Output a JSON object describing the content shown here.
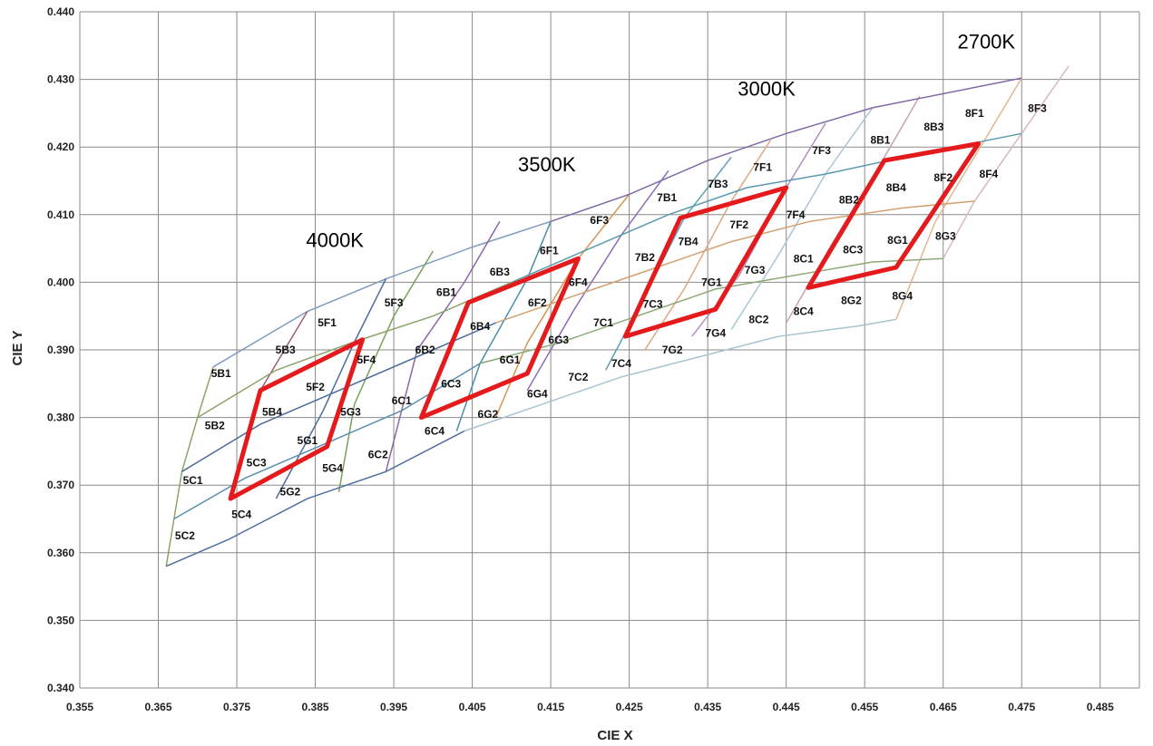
{
  "chart_data": {
    "type": "line",
    "title": "",
    "xlabel": "CIE X",
    "ylabel": "CIE Y",
    "xlim": [
      0.355,
      0.49
    ],
    "ylim": [
      0.34,
      0.44
    ],
    "x_ticks": [
      "0.355",
      "0.365",
      "0.375",
      "0.385",
      "0.395",
      "0.405",
      "0.415",
      "0.425",
      "0.435",
      "0.445",
      "0.455",
      "0.465",
      "0.475",
      "0.485"
    ],
    "y_ticks": [
      "0.340",
      "0.350",
      "0.360",
      "0.370",
      "0.380",
      "0.390",
      "0.400",
      "0.410",
      "0.420",
      "0.430",
      "0.440"
    ],
    "grid": true,
    "cct_groups": [
      {
        "label": "4000K",
        "x": 0.3875,
        "y": 0.4052
      },
      {
        "label": "3500K",
        "x": 0.4145,
        "y": 0.4164
      },
      {
        "label": "3000K",
        "x": 0.4425,
        "y": 0.4276
      },
      {
        "label": "2700K",
        "x": 0.4705,
        "y": 0.4346
      }
    ],
    "grid_lines": [
      {
        "color": "#7f9bbd",
        "points": [
          [
            0.372,
            0.3875
          ],
          [
            0.384,
            0.3957
          ],
          [
            0.394,
            0.4005
          ],
          [
            0.405,
            0.4052
          ],
          [
            0.415,
            0.409
          ]
        ]
      },
      {
        "color": "#8ca46a",
        "points": [
          [
            0.372,
            0.3875
          ],
          [
            0.37,
            0.38
          ],
          [
            0.368,
            0.372
          ],
          [
            0.367,
            0.365
          ],
          [
            0.366,
            0.358
          ]
        ]
      },
      {
        "color": "#9b5d7a",
        "points": [
          [
            0.384,
            0.3957
          ],
          [
            0.378,
            0.384
          ],
          [
            0.374,
            0.368
          ]
        ]
      },
      {
        "color": "#4c6c9c",
        "points": [
          [
            0.394,
            0.4005
          ],
          [
            0.39,
            0.3912
          ],
          [
            0.386,
            0.381
          ],
          [
            0.38,
            0.368
          ]
        ]
      },
      {
        "color": "#7aa05a",
        "points": [
          [
            0.4,
            0.4046
          ],
          [
            0.395,
            0.395
          ],
          [
            0.39,
            0.382
          ],
          [
            0.388,
            0.369
          ]
        ]
      },
      {
        "color": "#8c66a8",
        "points": [
          [
            0.4085,
            0.409
          ],
          [
            0.404,
            0.4
          ],
          [
            0.398,
            0.39
          ],
          [
            0.394,
            0.372
          ]
        ]
      },
      {
        "color": "#4a8fa8",
        "points": [
          [
            0.415,
            0.409
          ],
          [
            0.412,
            0.4005
          ],
          [
            0.406,
            0.388
          ],
          [
            0.403,
            0.378
          ]
        ]
      },
      {
        "color": "#d49654",
        "points": [
          [
            0.425,
            0.413
          ],
          [
            0.4185,
            0.4035
          ],
          [
            0.412,
            0.391
          ],
          [
            0.408,
            0.38
          ]
        ]
      },
      {
        "color": "#8d6eb4",
        "points": [
          [
            0.43,
            0.4165
          ],
          [
            0.424,
            0.407
          ],
          [
            0.418,
            0.396
          ],
          [
            0.412,
            0.384
          ]
        ]
      },
      {
        "color": "#5aa0b4",
        "points": [
          [
            0.438,
            0.4185
          ],
          [
            0.432,
            0.4095
          ],
          [
            0.427,
            0.398
          ],
          [
            0.422,
            0.387
          ]
        ]
      },
      {
        "color": "#e0a880",
        "points": [
          [
            0.443,
            0.421
          ],
          [
            0.438,
            0.412
          ],
          [
            0.432,
            0.399
          ],
          [
            0.427,
            0.39
          ]
        ]
      },
      {
        "color": "#b48cc0",
        "points": [
          [
            0.45,
            0.4235
          ],
          [
            0.445,
            0.414
          ],
          [
            0.439,
            0.401
          ],
          [
            0.433,
            0.392
          ]
        ]
      },
      {
        "color": "#a6c8d4",
        "points": [
          [
            0.456,
            0.4258
          ],
          [
            0.45,
            0.416
          ],
          [
            0.444,
            0.404
          ],
          [
            0.438,
            0.393
          ]
        ]
      },
      {
        "color": "#c8a0b8",
        "points": [
          [
            0.462,
            0.4275
          ],
          [
            0.457,
            0.4175
          ],
          [
            0.451,
            0.406
          ],
          [
            0.445,
            0.394
          ]
        ]
      },
      {
        "color": "#e0b890",
        "points": [
          [
            0.475,
            0.4302
          ],
          [
            0.47,
            0.4205
          ],
          [
            0.464,
            0.409
          ],
          [
            0.459,
            0.3945
          ]
        ]
      },
      {
        "color": "#d8b8c0",
        "points": [
          [
            0.481,
            0.432
          ],
          [
            0.475,
            0.422
          ],
          [
            0.469,
            0.412
          ],
          [
            0.465,
            0.4035
          ]
        ]
      },
      {
        "color": "#8ca46a",
        "points": [
          [
            0.37,
            0.38
          ],
          [
            0.38,
            0.387
          ],
          [
            0.39,
            0.3912
          ],
          [
            0.4,
            0.395
          ],
          [
            0.41,
            0.4
          ]
        ]
      },
      {
        "color": "#4c6c9c",
        "points": [
          [
            0.368,
            0.372
          ],
          [
            0.378,
            0.379
          ],
          [
            0.388,
            0.384
          ],
          [
            0.398,
            0.389
          ],
          [
            0.408,
            0.394
          ]
        ]
      },
      {
        "color": "#5a8fb0",
        "points": [
          [
            0.367,
            0.365
          ],
          [
            0.376,
            0.371
          ],
          [
            0.386,
            0.376
          ],
          [
            0.396,
            0.381
          ],
          [
            0.406,
            0.388
          ]
        ]
      },
      {
        "color": "#4f6fa0",
        "points": [
          [
            0.366,
            0.358
          ],
          [
            0.374,
            0.362
          ],
          [
            0.384,
            0.368
          ],
          [
            0.394,
            0.372
          ],
          [
            0.404,
            0.378
          ]
        ]
      },
      {
        "color": "#7f6aa6",
        "points": [
          [
            0.415,
            0.409
          ],
          [
            0.425,
            0.413
          ],
          [
            0.435,
            0.418
          ],
          [
            0.445,
            0.422
          ],
          [
            0.456,
            0.4258
          ],
          [
            0.475,
            0.4302
          ]
        ]
      },
      {
        "color": "#5a9ab0",
        "points": [
          [
            0.41,
            0.4
          ],
          [
            0.42,
            0.405
          ],
          [
            0.43,
            0.41
          ],
          [
            0.44,
            0.414
          ],
          [
            0.45,
            0.416
          ],
          [
            0.462,
            0.419
          ],
          [
            0.475,
            0.422
          ]
        ]
      },
      {
        "color": "#d4a070",
        "points": [
          [
            0.408,
            0.394
          ],
          [
            0.418,
            0.398
          ],
          [
            0.428,
            0.402
          ],
          [
            0.438,
            0.406
          ],
          [
            0.448,
            0.409
          ],
          [
            0.46,
            0.411
          ],
          [
            0.469,
            0.412
          ]
        ]
      },
      {
        "color": "#8caa78",
        "points": [
          [
            0.406,
            0.388
          ],
          [
            0.416,
            0.391
          ],
          [
            0.426,
            0.395
          ],
          [
            0.436,
            0.399
          ],
          [
            0.446,
            0.401
          ],
          [
            0.456,
            0.403
          ],
          [
            0.465,
            0.4035
          ]
        ]
      },
      {
        "color": "#a8c4d0",
        "points": [
          [
            0.404,
            0.378
          ],
          [
            0.414,
            0.382
          ],
          [
            0.424,
            0.386
          ],
          [
            0.434,
            0.389
          ],
          [
            0.444,
            0.392
          ],
          [
            0.454,
            0.3935
          ],
          [
            0.459,
            0.3945
          ]
        ]
      }
    ],
    "highlighted_quadrangles": [
      {
        "name": "4000K",
        "points": [
          [
            0.378,
            0.384
          ],
          [
            0.391,
            0.3915
          ],
          [
            0.3865,
            0.3757
          ],
          [
            0.3742,
            0.368
          ]
        ]
      },
      {
        "name": "3500K",
        "points": [
          [
            0.4045,
            0.397
          ],
          [
            0.4185,
            0.4035
          ],
          [
            0.412,
            0.3865
          ],
          [
            0.3985,
            0.38
          ]
        ]
      },
      {
        "name": "3000K",
        "points": [
          [
            0.4315,
            0.4095
          ],
          [
            0.445,
            0.414
          ],
          [
            0.436,
            0.396
          ],
          [
            0.4245,
            0.392
          ]
        ]
      },
      {
        "name": "2700K",
        "points": [
          [
            0.4575,
            0.418
          ],
          [
            0.4695,
            0.4205
          ],
          [
            0.459,
            0.4022
          ],
          [
            0.4478,
            0.3992
          ]
        ]
      }
    ],
    "bin_labels": [
      {
        "label": "5B1",
        "x": 0.373,
        "y": 0.3865
      },
      {
        "label": "5B2",
        "x": 0.3722,
        "y": 0.3788
      },
      {
        "label": "5C1",
        "x": 0.3694,
        "y": 0.3707
      },
      {
        "label": "5C2",
        "x": 0.3684,
        "y": 0.3625
      },
      {
        "label": "5B3",
        "x": 0.3812,
        "y": 0.39
      },
      {
        "label": "5B4",
        "x": 0.3795,
        "y": 0.3808
      },
      {
        "label": "5C3",
        "x": 0.3775,
        "y": 0.3733
      },
      {
        "label": "5C4",
        "x": 0.3756,
        "y": 0.3657
      },
      {
        "label": "5F1",
        "x": 0.3865,
        "y": 0.394
      },
      {
        "label": "5F2",
        "x": 0.385,
        "y": 0.3845
      },
      {
        "label": "5G1",
        "x": 0.384,
        "y": 0.3766
      },
      {
        "label": "5G2",
        "x": 0.3818,
        "y": 0.369
      },
      {
        "label": "5F3",
        "x": 0.395,
        "y": 0.397
      },
      {
        "label": "5F4",
        "x": 0.3915,
        "y": 0.3885
      },
      {
        "label": "5G3",
        "x": 0.3895,
        "y": 0.3808
      },
      {
        "label": "5G4",
        "x": 0.3872,
        "y": 0.3725
      },
      {
        "label": "6B1",
        "x": 0.4017,
        "y": 0.3985
      },
      {
        "label": "6B2",
        "x": 0.399,
        "y": 0.39
      },
      {
        "label": "6C1",
        "x": 0.396,
        "y": 0.3825
      },
      {
        "label": "6C2",
        "x": 0.393,
        "y": 0.3745
      },
      {
        "label": "6B3",
        "x": 0.4085,
        "y": 0.4015
      },
      {
        "label": "6B4",
        "x": 0.406,
        "y": 0.3935
      },
      {
        "label": "6C3",
        "x": 0.4023,
        "y": 0.385
      },
      {
        "label": "6C4",
        "x": 0.4002,
        "y": 0.378
      },
      {
        "label": "6F1",
        "x": 0.4148,
        "y": 0.4047
      },
      {
        "label": "6F2",
        "x": 0.4133,
        "y": 0.397
      },
      {
        "label": "6G1",
        "x": 0.4098,
        "y": 0.3885
      },
      {
        "label": "6G2",
        "x": 0.407,
        "y": 0.3805
      },
      {
        "label": "6F3",
        "x": 0.4212,
        "y": 0.4092
      },
      {
        "label": "6F4",
        "x": 0.4185,
        "y": 0.4
      },
      {
        "label": "6G3",
        "x": 0.416,
        "y": 0.3915
      },
      {
        "label": "6G4",
        "x": 0.4133,
        "y": 0.3835
      },
      {
        "label": "7B1",
        "x": 0.4298,
        "y": 0.4125
      },
      {
        "label": "7B2",
        "x": 0.427,
        "y": 0.4037
      },
      {
        "label": "7C1",
        "x": 0.4217,
        "y": 0.394
      },
      {
        "label": "7C2",
        "x": 0.4185,
        "y": 0.386
      },
      {
        "label": "7B3",
        "x": 0.4363,
        "y": 0.4145
      },
      {
        "label": "7B4",
        "x": 0.4325,
        "y": 0.406
      },
      {
        "label": "7C3",
        "x": 0.428,
        "y": 0.3968
      },
      {
        "label": "7C4",
        "x": 0.424,
        "y": 0.388
      },
      {
        "label": "7F1",
        "x": 0.442,
        "y": 0.417
      },
      {
        "label": "7F2",
        "x": 0.439,
        "y": 0.4085
      },
      {
        "label": "7G1",
        "x": 0.4355,
        "y": 0.4
      },
      {
        "label": "7G2",
        "x": 0.4305,
        "y": 0.39
      },
      {
        "label": "7F3",
        "x": 0.4495,
        "y": 0.4195
      },
      {
        "label": "7F4",
        "x": 0.4462,
        "y": 0.41
      },
      {
        "label": "7G3",
        "x": 0.441,
        "y": 0.4018
      },
      {
        "label": "7G4",
        "x": 0.436,
        "y": 0.3925
      },
      {
        "label": "8B1",
        "x": 0.457,
        "y": 0.421
      },
      {
        "label": "8B2",
        "x": 0.453,
        "y": 0.4122
      },
      {
        "label": "8C1",
        "x": 0.4472,
        "y": 0.4035
      },
      {
        "label": "8C2",
        "x": 0.4415,
        "y": 0.3945
      },
      {
        "label": "8B3",
        "x": 0.4638,
        "y": 0.423
      },
      {
        "label": "8B4",
        "x": 0.459,
        "y": 0.414
      },
      {
        "label": "8C3",
        "x": 0.4535,
        "y": 0.4048
      },
      {
        "label": "8C4",
        "x": 0.4472,
        "y": 0.3957
      },
      {
        "label": "8F1",
        "x": 0.469,
        "y": 0.425
      },
      {
        "label": "8F2",
        "x": 0.465,
        "y": 0.4155
      },
      {
        "label": "8G1",
        "x": 0.4592,
        "y": 0.4062
      },
      {
        "label": "8G2",
        "x": 0.4533,
        "y": 0.3973
      },
      {
        "label": "8F3",
        "x": 0.477,
        "y": 0.4257
      },
      {
        "label": "8F4",
        "x": 0.4708,
        "y": 0.416
      },
      {
        "label": "8G3",
        "x": 0.4653,
        "y": 0.4068
      },
      {
        "label": "8G4",
        "x": 0.4598,
        "y": 0.398
      }
    ],
    "highlight_color": "#e41a1c"
  }
}
